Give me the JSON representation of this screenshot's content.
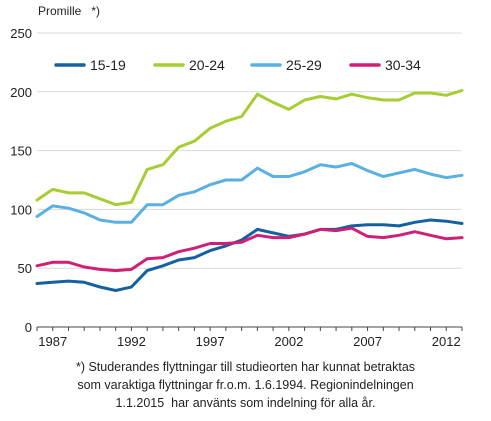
{
  "chart_data": {
    "type": "line",
    "ylabel": "Promille   *)",
    "ylim": [
      0,
      250
    ],
    "yticks": [
      0,
      50,
      100,
      150,
      200,
      250
    ],
    "xlim": [
      1986,
      2013
    ],
    "xticks": [
      1987,
      1992,
      1997,
      2002,
      2007,
      2012
    ],
    "grid": "horizontal",
    "legend_position": "top-inside",
    "x": [
      1986,
      1987,
      1988,
      1989,
      1990,
      1991,
      1992,
      1993,
      1994,
      1995,
      1996,
      1997,
      1998,
      1999,
      2000,
      2001,
      2002,
      2003,
      2004,
      2005,
      2006,
      2007,
      2008,
      2009,
      2010,
      2011,
      2012,
      2013
    ],
    "series": [
      {
        "name": "15-19",
        "color": "#1560a0",
        "values": [
          37,
          38,
          39,
          38,
          34,
          31,
          34,
          48,
          52,
          57,
          59,
          65,
          69,
          74,
          83,
          80,
          77,
          79,
          83,
          83,
          86,
          87,
          87,
          86,
          89,
          91,
          90,
          88
        ]
      },
      {
        "name": "20-24",
        "color": "#a8cc34",
        "values": [
          108,
          117,
          114,
          114,
          109,
          104,
          106,
          134,
          138,
          153,
          158,
          169,
          175,
          179,
          198,
          191,
          185,
          193,
          196,
          194,
          198,
          195,
          193,
          193,
          199,
          199,
          197,
          201
        ]
      },
      {
        "name": "25-29",
        "color": "#5ab0e2",
        "values": [
          94,
          103,
          101,
          97,
          91,
          89,
          89,
          104,
          104,
          112,
          115,
          121,
          125,
          125,
          135,
          128,
          128,
          132,
          138,
          136,
          139,
          133,
          128,
          131,
          134,
          130,
          127,
          129
        ]
      },
      {
        "name": "30-34",
        "color": "#d01f74",
        "values": [
          52,
          55,
          55,
          51,
          49,
          48,
          49,
          58,
          59,
          64,
          67,
          71,
          71,
          72,
          78,
          76,
          76,
          79,
          83,
          82,
          84,
          77,
          76,
          78,
          81,
          78,
          75,
          76
        ]
      }
    ]
  },
  "footnote": {
    "lines": [
      "*) Studerandes flyttningar till studieorten har kunnat betraktas",
      "som varaktiga flyttningar fr.o.m. 1.6.1994. Regionindelningen",
      "1.1.2015  har använts som indelning för alla år."
    ]
  }
}
